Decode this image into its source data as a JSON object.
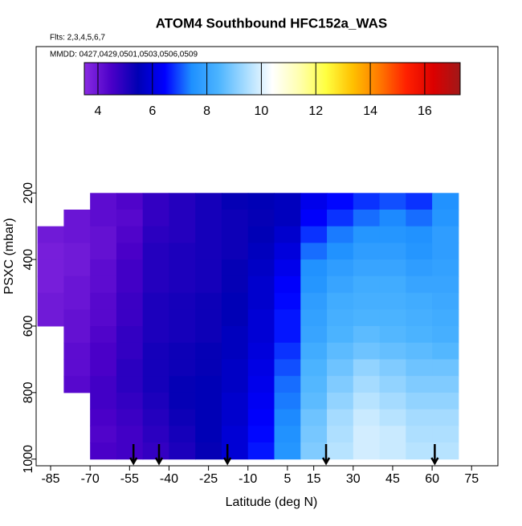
{
  "chart_data": {
    "type": "heatmap",
    "title": "ATOM4 Southbound HFC152a_WAS",
    "subtitle": "Flts: 2,3,4,5,6,7",
    "annotation": "MMDD: 0427,0429,0501,0503,0506,0509",
    "x_label": "Latitude (deg N)",
    "y_label": "PSXC (mbar)",
    "xlim": [
      -90.5,
      85
    ],
    "xticks": [
      -85,
      -70,
      -55,
      -40,
      -25,
      -10,
      5,
      15,
      30,
      45,
      60,
      75
    ],
    "ylim": [
      1020,
      -240
    ],
    "yticks": [
      200,
      400,
      600,
      800,
      1000
    ],
    "x": [
      -90,
      -80,
      -70,
      -60,
      -50,
      -40,
      -30,
      -20,
      -10,
      0,
      10,
      20,
      30,
      40,
      50,
      60,
      70
    ],
    "y": [
      200,
      250,
      300,
      350,
      400,
      450,
      500,
      550,
      600,
      650,
      700,
      750,
      800,
      850,
      900,
      950,
      1000
    ],
    "z": [
      [
        null,
        null,
        4.2,
        4.4,
        4.8,
        5.0,
        5.2,
        5.4,
        5.5,
        5.6,
        6.2,
        6.5,
        6.8,
        7.0,
        6.8,
        7.5
      ],
      [
        null,
        4.0,
        4.2,
        4.3,
        4.8,
        5.0,
        5.2,
        5.3,
        5.4,
        5.6,
        6.4,
        6.8,
        7.2,
        7.4,
        7.2,
        7.6
      ],
      [
        3.9,
        4.0,
        4.1,
        4.4,
        4.9,
        5.0,
        5.2,
        5.3,
        5.5,
        5.8,
        6.8,
        7.3,
        7.6,
        7.6,
        7.5,
        7.8
      ],
      [
        3.8,
        3.9,
        4.1,
        4.5,
        5.0,
        5.1,
        5.2,
        5.3,
        5.6,
        6.0,
        7.2,
        7.5,
        7.8,
        7.8,
        7.6,
        7.8
      ],
      [
        3.8,
        3.9,
        4.2,
        4.6,
        5.0,
        5.1,
        5.2,
        5.4,
        5.7,
        6.2,
        7.5,
        7.8,
        8.0,
        8.0,
        7.8,
        7.9
      ],
      [
        3.8,
        4.0,
        4.2,
        4.6,
        5.0,
        5.1,
        5.2,
        5.4,
        5.8,
        6.4,
        7.6,
        8.0,
        8.2,
        8.2,
        8.0,
        8.0
      ],
      [
        3.9,
        4.0,
        4.3,
        4.7,
        5.1,
        5.2,
        5.3,
        5.5,
        5.8,
        6.5,
        7.8,
        8.2,
        8.3,
        8.3,
        8.2,
        8.1
      ],
      [
        3.9,
        4.1,
        4.3,
        4.7,
        5.1,
        5.2,
        5.3,
        5.5,
        5.9,
        6.6,
        7.9,
        8.3,
        8.4,
        8.4,
        8.3,
        8.2
      ],
      [
        null,
        4.1,
        4.4,
        4.8,
        5.1,
        5.2,
        5.3,
        5.6,
        5.9,
        6.6,
        8.0,
        8.4,
        8.6,
        8.5,
        8.4,
        8.3
      ],
      [
        null,
        4.2,
        4.5,
        4.8,
        5.2,
        5.3,
        5.4,
        5.6,
        6.0,
        6.8,
        8.2,
        8.6,
        8.8,
        8.7,
        8.6,
        8.5
      ],
      [
        null,
        4.2,
        4.5,
        4.9,
        5.2,
        5.3,
        5.4,
        5.7,
        6.1,
        7.0,
        8.4,
        8.8,
        9.2,
        9.0,
        8.8,
        8.8
      ],
      [
        null,
        4.3,
        4.6,
        4.9,
        5.2,
        5.4,
        5.5,
        5.7,
        6.2,
        7.2,
        8.5,
        9.0,
        9.4,
        9.2,
        9.0,
        9.0
      ],
      [
        null,
        null,
        4.6,
        4.8,
        5.1,
        5.4,
        5.5,
        5.8,
        6.3,
        7.3,
        8.6,
        9.2,
        9.6,
        9.4,
        9.2,
        9.2
      ],
      [
        null,
        null,
        4.5,
        4.7,
        5.0,
        5.3,
        5.5,
        5.8,
        6.4,
        7.4,
        8.8,
        9.4,
        9.8,
        9.6,
        9.4,
        9.4
      ],
      [
        null,
        null,
        4.4,
        4.6,
        4.9,
        5.2,
        5.5,
        5.9,
        6.5,
        7.5,
        8.9,
        9.5,
        9.9,
        9.8,
        9.5,
        9.5
      ],
      [
        null,
        null,
        4.5,
        4.6,
        4.8,
        5.1,
        5.4,
        5.9,
        6.6,
        7.6,
        9.0,
        9.6,
        9.9,
        9.8,
        9.6,
        9.6
      ]
    ],
    "clim": [
      3.5,
      17.3
    ],
    "cticks": [
      4,
      6,
      8,
      10,
      12,
      14,
      16
    ],
    "colorscale": [
      "#8a2be2",
      "#4b00c8",
      "#0000b4",
      "#0000ff",
      "#1e90ff",
      "#4cb4ff",
      "#a6dcff",
      "#ffffff",
      "#ffffb0",
      "#ffff40",
      "#ffc000",
      "#ff7800",
      "#ff2000",
      "#dc0000",
      "#a01818"
    ],
    "arrows": [
      -53.5,
      -43.8,
      -17.8,
      19.7,
      61
    ]
  }
}
